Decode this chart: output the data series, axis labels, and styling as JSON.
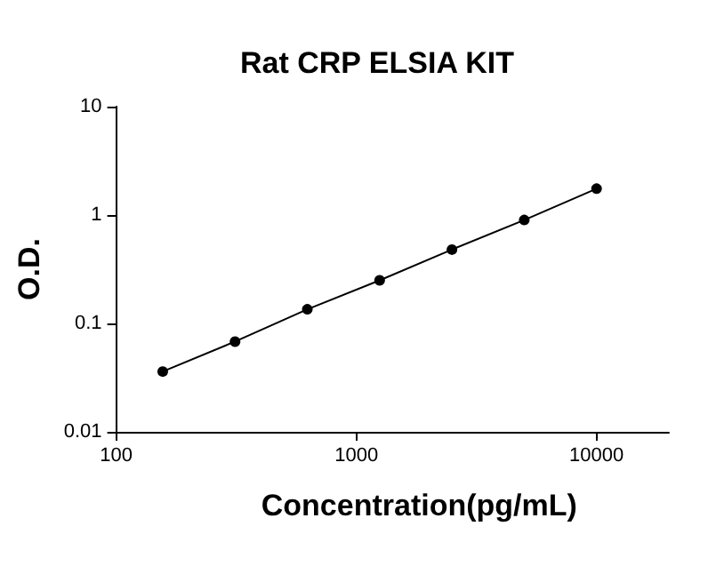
{
  "chart_data": {
    "type": "line",
    "title": "Rat CRP ELSIA KIT",
    "xlabel": "Concentration(pg/mL)",
    "ylabel": "O.D.",
    "x": [
      156.25,
      312.5,
      625,
      1250,
      2500,
      5000,
      10000
    ],
    "series": [
      {
        "color": "#000000",
        "values": [
          0.036,
          0.068,
          0.135,
          0.25,
          0.48,
          0.9,
          1.75
        ]
      }
    ],
    "log": "xy",
    "xlim": [
      100,
      20000
    ],
    "ylim": [
      0.01,
      10
    ],
    "xticks": [
      100,
      1000,
      10000
    ],
    "yticks": [
      0.01,
      0.1,
      1,
      10
    ],
    "grid": false,
    "marker": "circle",
    "line_style": "solid"
  }
}
